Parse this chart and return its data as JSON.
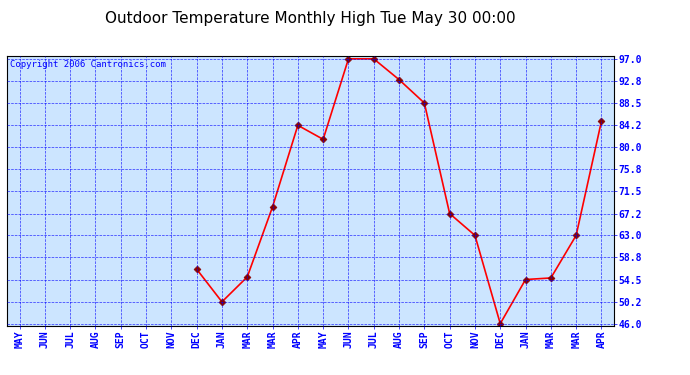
{
  "title": "Outdoor Temperature Monthly High Tue May 30 00:00",
  "copyright": "Copyright 2006 Cantronics.com",
  "x_labels": [
    "MAY",
    "JUN",
    "JUL",
    "AUG",
    "SEP",
    "OCT",
    "NOV",
    "DEC",
    "JAN",
    "MAR",
    "MAR",
    "APR",
    "MAY",
    "JUN",
    "JUL",
    "AUG",
    "SEP",
    "OCT",
    "NOV",
    "DEC",
    "JAN",
    "MAR",
    "MAR",
    "APR"
  ],
  "y_values": [
    null,
    null,
    null,
    null,
    null,
    null,
    null,
    56.5,
    50.2,
    55.0,
    68.5,
    84.2,
    81.5,
    97.0,
    97.0,
    93.0,
    88.5,
    67.2,
    63.0,
    46.0,
    54.5,
    54.8,
    63.0,
    85.0
  ],
  "ylim_min": 46.0,
  "ylim_max": 97.0,
  "yticks": [
    46.0,
    50.2,
    54.5,
    58.8,
    63.0,
    67.2,
    71.5,
    75.8,
    80.0,
    84.2,
    88.5,
    92.8,
    97.0
  ],
  "line_color": "red",
  "marker_color": "darkred",
  "bg_color": "#cce5ff",
  "grid_color": "blue",
  "title_fontsize": 11,
  "tick_fontsize": 7,
  "copyright_fontsize": 6.5
}
